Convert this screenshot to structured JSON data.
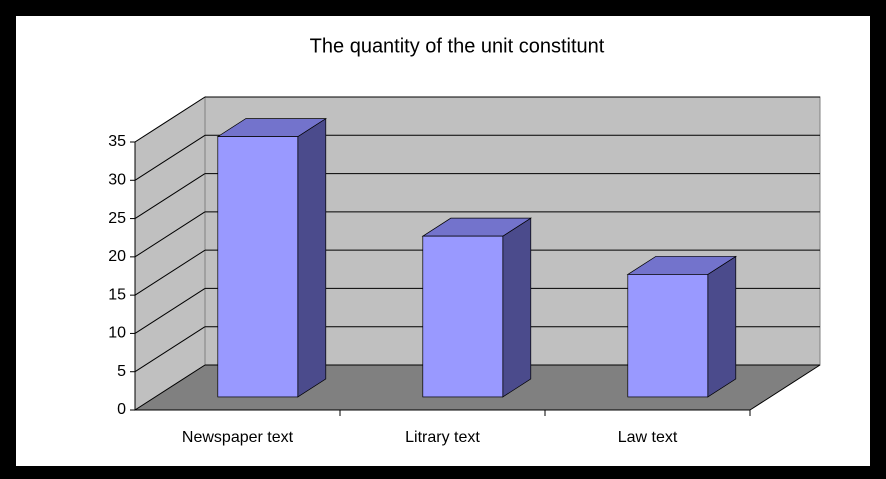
{
  "chart_data": {
    "type": "bar3d",
    "title": "The quantity of the unit constitunt",
    "categories": [
      "Newspaper text",
      "Litrary text",
      "Law text"
    ],
    "values": [
      34,
      21,
      16
    ],
    "color": "#9999ff",
    "ylim": [
      0,
      35
    ],
    "yticks": [
      0,
      5,
      10,
      15,
      20,
      25,
      30,
      35
    ],
    "grid": true
  }
}
